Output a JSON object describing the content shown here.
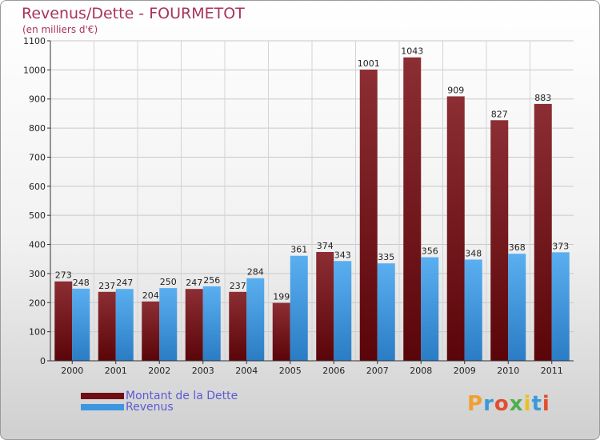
{
  "header": {
    "title": "Revenus/Dette - FOURMETOT",
    "subtitle": "(en milliers d'€)"
  },
  "logo": {
    "text": "Proxiti",
    "letter_colors": [
      "#f0a030",
      "#3a9ad9",
      "#e05030",
      "#4caf50",
      "#e8c020",
      "#3a9ad9",
      "#e05030"
    ]
  },
  "colors": {
    "debt": "#6e0f14",
    "revenue": "#3d96e0",
    "title": "#a8345a",
    "legend_text": "#5b5bd6"
  },
  "chart_data": {
    "type": "bar",
    "categories": [
      "2000",
      "2001",
      "2002",
      "2003",
      "2004",
      "2005",
      "2006",
      "2007",
      "2008",
      "2009",
      "2010",
      "2011"
    ],
    "series": [
      {
        "name": "Montant de la Dette",
        "values": [
          273,
          237,
          204,
          247,
          237,
          199,
          374,
          1001,
          1043,
          909,
          827,
          883
        ]
      },
      {
        "name": "Revenus",
        "values": [
          248,
          247,
          250,
          256,
          284,
          361,
          343,
          335,
          356,
          348,
          368,
          373
        ]
      }
    ],
    "ylim": [
      0,
      1100
    ],
    "yticks": [
      0,
      100,
      200,
      300,
      400,
      500,
      600,
      700,
      800,
      900,
      1000,
      1100
    ],
    "grid": true,
    "legend_position": "bottom-left"
  }
}
